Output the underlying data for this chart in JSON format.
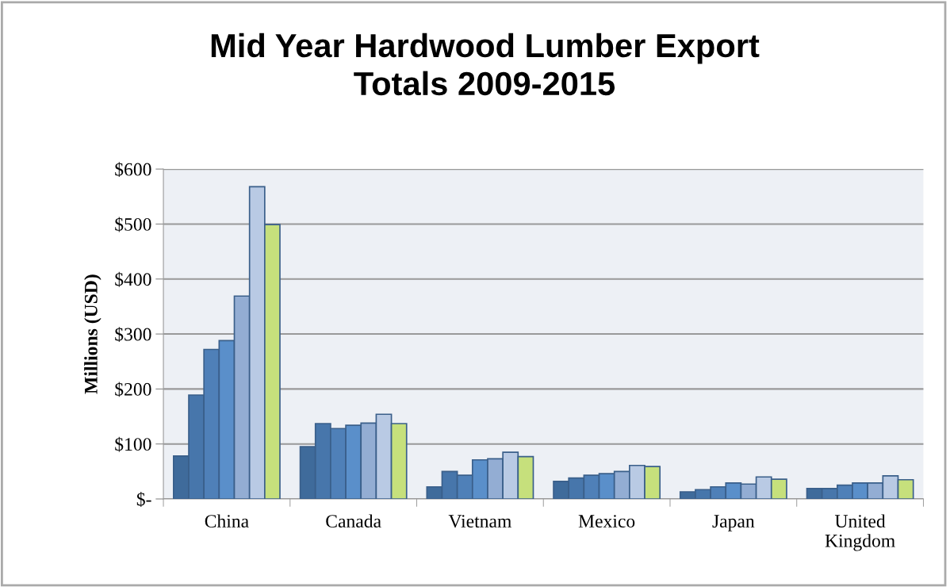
{
  "chart_data": {
    "type": "bar",
    "title": "Mid Year Hardwood Lumber Export\nTotals 2009-2015",
    "ylabel": "Millions (USD)",
    "categories": [
      "China",
      "Canada",
      "Vietnam",
      "Mexico",
      "Japan",
      "United\nKingdom"
    ],
    "series": [
      {
        "color": "#3f6b9b",
        "values": [
          78,
          95,
          22,
          32,
          13,
          19
        ]
      },
      {
        "color": "#4776ab",
        "values": [
          189,
          137,
          50,
          38,
          17,
          19
        ]
      },
      {
        "color": "#4f80b8",
        "values": [
          272,
          128,
          43,
          43,
          22,
          25
        ]
      },
      {
        "color": "#5a8fca",
        "values": [
          288,
          134,
          71,
          46,
          29,
          29
        ]
      },
      {
        "color": "#93add3",
        "values": [
          369,
          138,
          73,
          50,
          27,
          29
        ]
      },
      {
        "color": "#b9cae4",
        "values": [
          568,
          154,
          85,
          61,
          40,
          42
        ]
      },
      {
        "color": "#c6e07c",
        "values": [
          499,
          137,
          77,
          59,
          36,
          35
        ]
      }
    ],
    "ylim": [
      0,
      600
    ],
    "yticks": [
      {
        "value": 0,
        "label": "$-"
      },
      {
        "value": 100,
        "label": "$100"
      },
      {
        "value": 200,
        "label": "$200"
      },
      {
        "value": 300,
        "label": "$300"
      },
      {
        "value": 400,
        "label": "$400"
      },
      {
        "value": 500,
        "label": "$500"
      },
      {
        "value": 600,
        "label": "$600"
      }
    ],
    "grid": "y"
  }
}
